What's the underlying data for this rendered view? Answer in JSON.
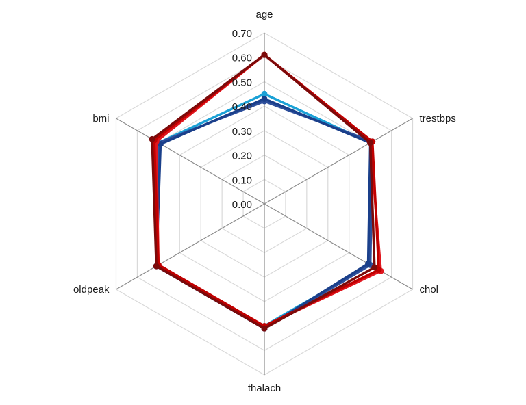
{
  "chart_data": {
    "type": "radar",
    "axes": [
      "age",
      "trestbps",
      "chol",
      "thalach",
      "oldpeak",
      "bmi"
    ],
    "r_ticks": [
      "0.00",
      "0.10",
      "0.20",
      "0.30",
      "0.40",
      "0.50",
      "0.60",
      "0.70"
    ],
    "rlim": [
      0,
      0.7
    ],
    "grid": true,
    "legend": "none",
    "series": [
      {
        "color": "#1ba1d6",
        "values": [
          0.45,
          0.5,
          0.5,
          0.5,
          0.51,
          0.5
        ]
      },
      {
        "color": "#2e4f9b",
        "values": [
          0.42,
          0.51,
          0.5,
          0.51,
          0.51,
          0.5
        ]
      },
      {
        "color": "#1a3f8a",
        "values": [
          0.43,
          0.5,
          0.49,
          0.51,
          0.51,
          0.49
        ]
      },
      {
        "color": "#e0161e",
        "values": [
          0.61,
          0.5,
          0.55,
          0.5,
          0.5,
          0.51
        ]
      },
      {
        "color": "#c00000",
        "values": [
          0.61,
          0.51,
          0.54,
          0.5,
          0.5,
          0.52
        ]
      },
      {
        "color": "#7b0a0a",
        "values": [
          0.61,
          0.5,
          0.52,
          0.51,
          0.51,
          0.53
        ]
      }
    ]
  }
}
